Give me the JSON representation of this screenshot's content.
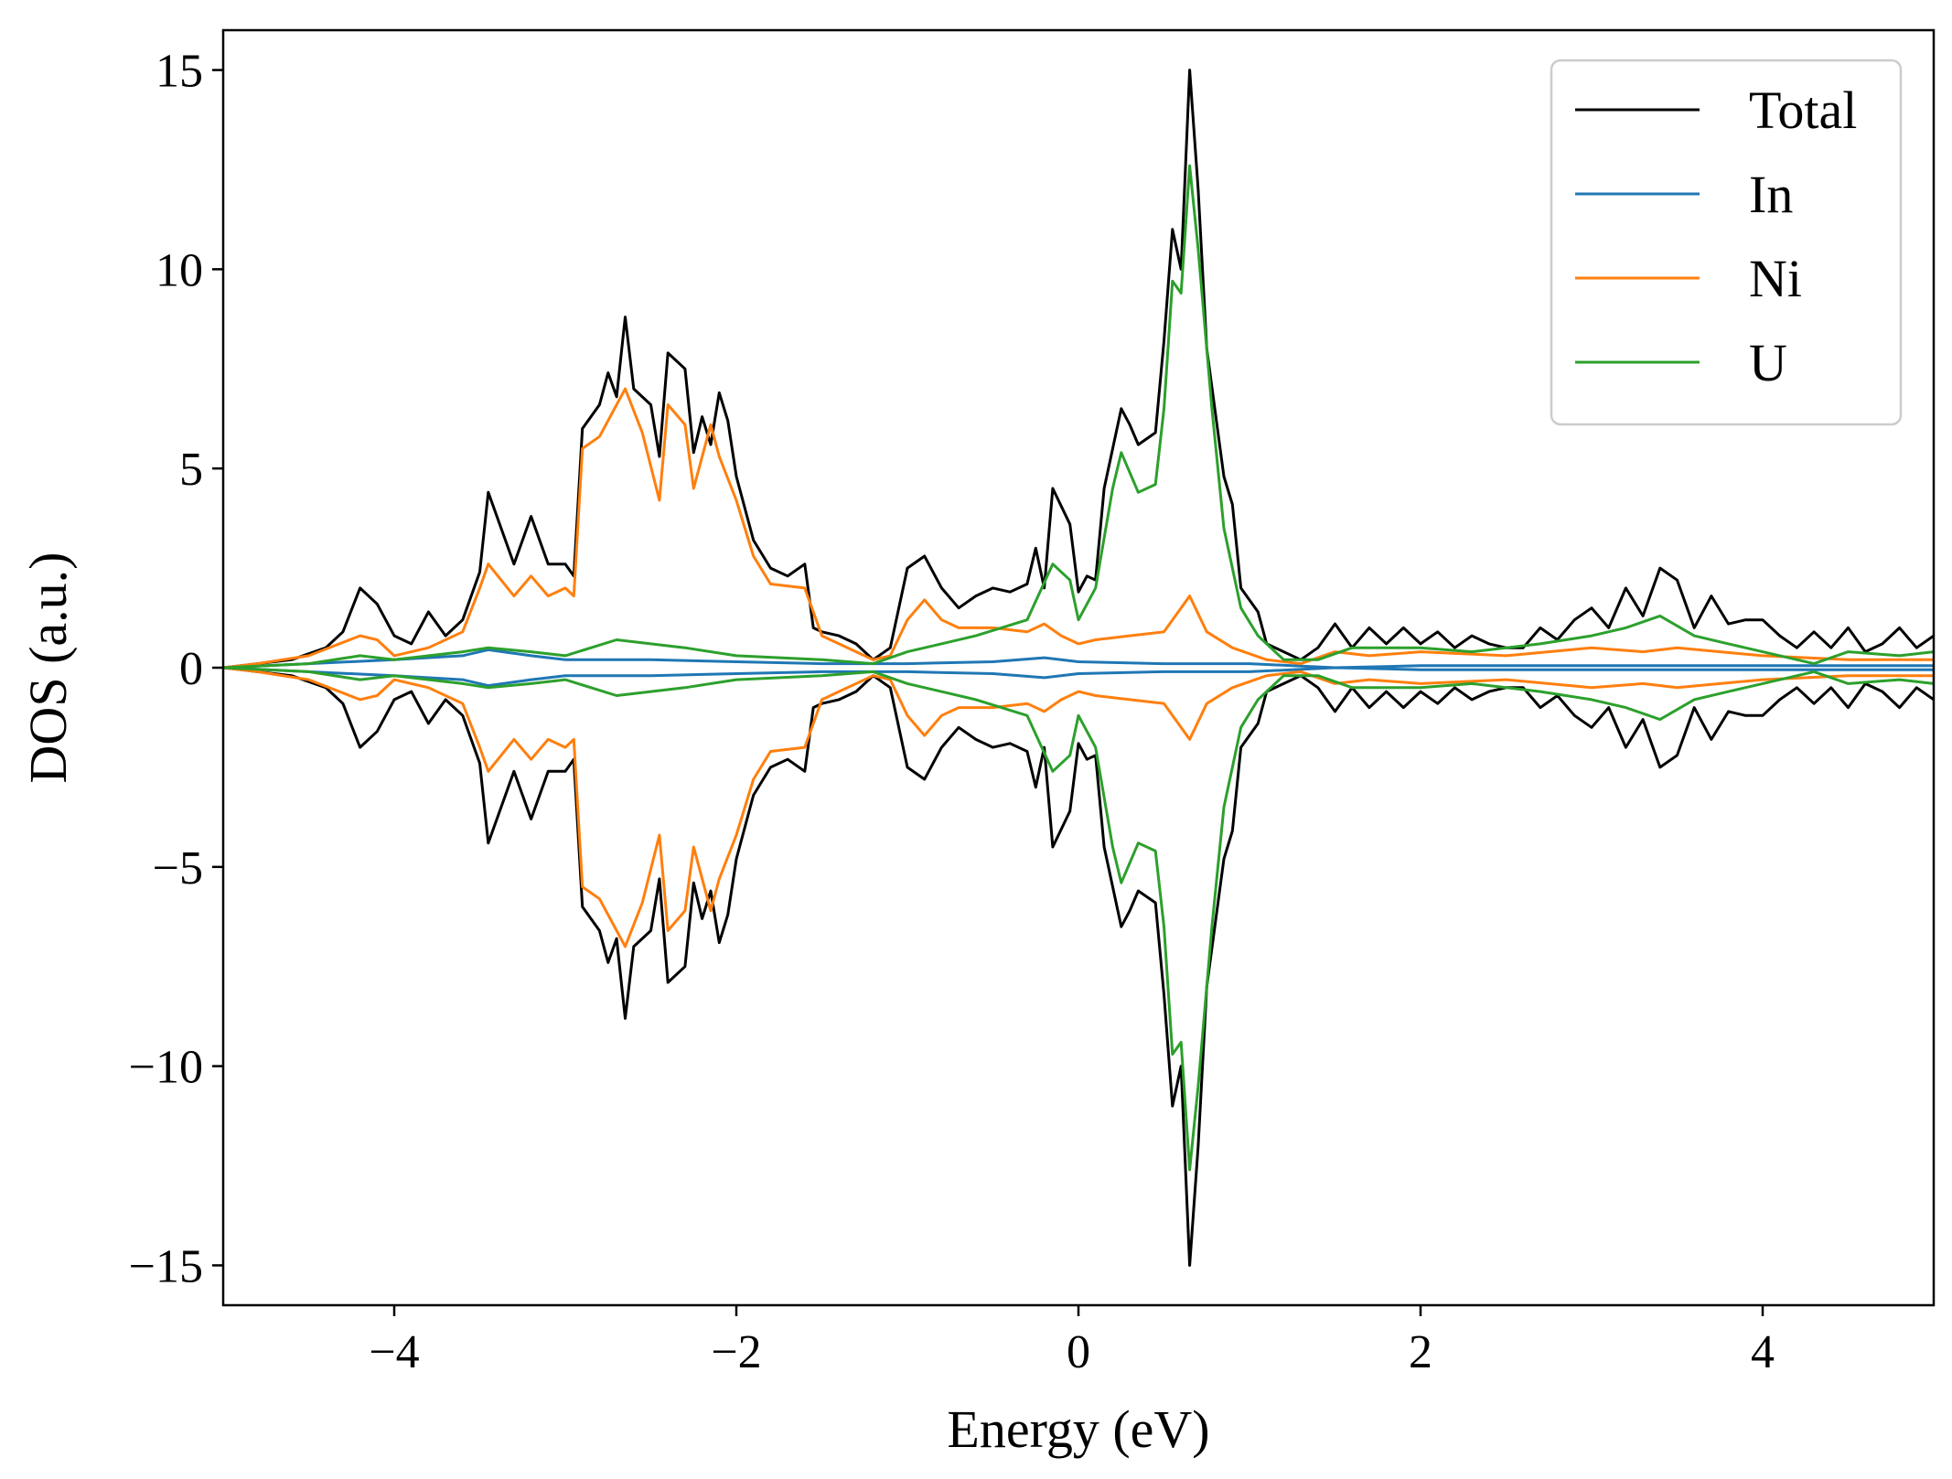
{
  "chart_data": {
    "type": "line",
    "title": "",
    "xlabel": "Energy (eV)",
    "ylabel": "DOS (a.u.)",
    "xlim": [
      -5,
      5
    ],
    "ylim": [
      -16,
      16
    ],
    "xticks": [
      -4,
      -2,
      0,
      2,
      4
    ],
    "yticks": [
      -15,
      -10,
      -5,
      0,
      5,
      10,
      15
    ],
    "xtick_labels": [
      "−4",
      "−2",
      "0",
      "2",
      "4"
    ],
    "ytick_labels": [
      "−15",
      "−10",
      "−5",
      "0",
      "5",
      "10",
      "15"
    ],
    "grid": false,
    "legend_position": "top-right",
    "spin_mirrored": true,
    "series": [
      {
        "name": "Total",
        "color": "#000000",
        "points": [
          [
            -5.0,
            0.0
          ],
          [
            -4.8,
            0.1
          ],
          [
            -4.6,
            0.2
          ],
          [
            -4.4,
            0.5
          ],
          [
            -4.3,
            0.9
          ],
          [
            -4.2,
            2.0
          ],
          [
            -4.1,
            1.6
          ],
          [
            -4.0,
            0.8
          ],
          [
            -3.9,
            0.6
          ],
          [
            -3.8,
            1.4
          ],
          [
            -3.7,
            0.8
          ],
          [
            -3.6,
            1.2
          ],
          [
            -3.5,
            2.4
          ],
          [
            -3.45,
            4.4
          ],
          [
            -3.4,
            3.8
          ],
          [
            -3.3,
            2.6
          ],
          [
            -3.2,
            3.8
          ],
          [
            -3.1,
            2.6
          ],
          [
            -3.0,
            2.6
          ],
          [
            -2.95,
            2.3
          ],
          [
            -2.9,
            6.0
          ],
          [
            -2.8,
            6.6
          ],
          [
            -2.75,
            7.4
          ],
          [
            -2.7,
            6.8
          ],
          [
            -2.65,
            8.8
          ],
          [
            -2.6,
            7.0
          ],
          [
            -2.5,
            6.6
          ],
          [
            -2.45,
            5.3
          ],
          [
            -2.4,
            7.9
          ],
          [
            -2.3,
            7.5
          ],
          [
            -2.25,
            5.4
          ],
          [
            -2.2,
            6.3
          ],
          [
            -2.15,
            5.6
          ],
          [
            -2.1,
            6.9
          ],
          [
            -2.05,
            6.2
          ],
          [
            -2.0,
            4.8
          ],
          [
            -1.9,
            3.2
          ],
          [
            -1.8,
            2.5
          ],
          [
            -1.7,
            2.3
          ],
          [
            -1.6,
            2.6
          ],
          [
            -1.55,
            1.0
          ],
          [
            -1.5,
            0.9
          ],
          [
            -1.4,
            0.8
          ],
          [
            -1.3,
            0.6
          ],
          [
            -1.2,
            0.2
          ],
          [
            -1.1,
            0.5
          ],
          [
            -1.0,
            2.5
          ],
          [
            -0.9,
            2.8
          ],
          [
            -0.8,
            2.0
          ],
          [
            -0.7,
            1.5
          ],
          [
            -0.6,
            1.8
          ],
          [
            -0.5,
            2.0
          ],
          [
            -0.4,
            1.9
          ],
          [
            -0.3,
            2.1
          ],
          [
            -0.25,
            3.0
          ],
          [
            -0.2,
            2.0
          ],
          [
            -0.15,
            4.5
          ],
          [
            -0.05,
            3.6
          ],
          [
            0.0,
            1.9
          ],
          [
            0.05,
            2.3
          ],
          [
            0.1,
            2.2
          ],
          [
            0.15,
            4.5
          ],
          [
            0.25,
            6.5
          ],
          [
            0.3,
            6.1
          ],
          [
            0.35,
            5.6
          ],
          [
            0.45,
            5.9
          ],
          [
            0.5,
            8.2
          ],
          [
            0.55,
            11.0
          ],
          [
            0.6,
            10.0
          ],
          [
            0.65,
            15.0
          ],
          [
            0.7,
            12.0
          ],
          [
            0.75,
            8.0
          ],
          [
            0.85,
            4.8
          ],
          [
            0.9,
            4.1
          ],
          [
            0.95,
            2.0
          ],
          [
            1.05,
            1.4
          ],
          [
            1.1,
            0.6
          ],
          [
            1.2,
            0.4
          ],
          [
            1.3,
            0.2
          ],
          [
            1.4,
            0.5
          ],
          [
            1.5,
            1.1
          ],
          [
            1.6,
            0.5
          ],
          [
            1.7,
            1.0
          ],
          [
            1.8,
            0.6
          ],
          [
            1.9,
            1.0
          ],
          [
            2.0,
            0.6
          ],
          [
            2.1,
            0.9
          ],
          [
            2.2,
            0.5
          ],
          [
            2.3,
            0.8
          ],
          [
            2.4,
            0.6
          ],
          [
            2.5,
            0.5
          ],
          [
            2.6,
            0.5
          ],
          [
            2.7,
            1.0
          ],
          [
            2.8,
            0.7
          ],
          [
            2.9,
            1.2
          ],
          [
            3.0,
            1.5
          ],
          [
            3.1,
            1.0
          ],
          [
            3.2,
            2.0
          ],
          [
            3.3,
            1.3
          ],
          [
            3.4,
            2.5
          ],
          [
            3.5,
            2.2
          ],
          [
            3.6,
            1.0
          ],
          [
            3.7,
            1.8
          ],
          [
            3.8,
            1.1
          ],
          [
            3.9,
            1.2
          ],
          [
            4.0,
            1.2
          ],
          [
            4.1,
            0.8
          ],
          [
            4.2,
            0.5
          ],
          [
            4.3,
            0.9
          ],
          [
            4.4,
            0.5
          ],
          [
            4.5,
            1.0
          ],
          [
            4.6,
            0.4
          ],
          [
            4.7,
            0.6
          ],
          [
            4.8,
            1.0
          ],
          [
            4.9,
            0.5
          ],
          [
            5.0,
            0.8
          ]
        ]
      },
      {
        "name": "In",
        "color": "#1f77b4",
        "points": [
          [
            -5.0,
            0.0
          ],
          [
            -4.5,
            0.1
          ],
          [
            -4.0,
            0.2
          ],
          [
            -3.6,
            0.3
          ],
          [
            -3.45,
            0.45
          ],
          [
            -3.2,
            0.3
          ],
          [
            -3.0,
            0.2
          ],
          [
            -2.5,
            0.2
          ],
          [
            -2.0,
            0.15
          ],
          [
            -1.5,
            0.1
          ],
          [
            -1.0,
            0.1
          ],
          [
            -0.5,
            0.15
          ],
          [
            -0.2,
            0.25
          ],
          [
            0.0,
            0.15
          ],
          [
            0.5,
            0.1
          ],
          [
            1.0,
            0.1
          ],
          [
            1.5,
            0.0
          ],
          [
            2.0,
            0.05
          ],
          [
            3.0,
            0.05
          ],
          [
            4.0,
            0.05
          ],
          [
            5.0,
            0.05
          ]
        ]
      },
      {
        "name": "Ni",
        "color": "#ff7f0e",
        "points": [
          [
            -5.0,
            0.0
          ],
          [
            -4.8,
            0.1
          ],
          [
            -4.5,
            0.3
          ],
          [
            -4.2,
            0.8
          ],
          [
            -4.1,
            0.7
          ],
          [
            -4.0,
            0.3
          ],
          [
            -3.8,
            0.5
          ],
          [
            -3.6,
            0.9
          ],
          [
            -3.5,
            2.0
          ],
          [
            -3.45,
            2.6
          ],
          [
            -3.3,
            1.8
          ],
          [
            -3.2,
            2.3
          ],
          [
            -3.1,
            1.8
          ],
          [
            -3.0,
            2.0
          ],
          [
            -2.95,
            1.8
          ],
          [
            -2.9,
            5.5
          ],
          [
            -2.8,
            5.8
          ],
          [
            -2.65,
            7.0
          ],
          [
            -2.55,
            5.9
          ],
          [
            -2.45,
            4.2
          ],
          [
            -2.4,
            6.6
          ],
          [
            -2.3,
            6.1
          ],
          [
            -2.25,
            4.5
          ],
          [
            -2.15,
            6.1
          ],
          [
            -2.1,
            5.3
          ],
          [
            -2.0,
            4.2
          ],
          [
            -1.9,
            2.8
          ],
          [
            -1.8,
            2.1
          ],
          [
            -1.6,
            2.0
          ],
          [
            -1.5,
            0.8
          ],
          [
            -1.4,
            0.6
          ],
          [
            -1.2,
            0.2
          ],
          [
            -1.1,
            0.3
          ],
          [
            -1.0,
            1.2
          ],
          [
            -0.9,
            1.7
          ],
          [
            -0.8,
            1.2
          ],
          [
            -0.7,
            1.0
          ],
          [
            -0.5,
            1.0
          ],
          [
            -0.3,
            0.9
          ],
          [
            -0.2,
            1.1
          ],
          [
            -0.1,
            0.8
          ],
          [
            0.0,
            0.6
          ],
          [
            0.1,
            0.7
          ],
          [
            0.3,
            0.8
          ],
          [
            0.5,
            0.9
          ],
          [
            0.65,
            1.8
          ],
          [
            0.75,
            0.9
          ],
          [
            0.9,
            0.5
          ],
          [
            1.1,
            0.2
          ],
          [
            1.3,
            0.1
          ],
          [
            1.5,
            0.4
          ],
          [
            1.7,
            0.3
          ],
          [
            2.0,
            0.4
          ],
          [
            2.5,
            0.3
          ],
          [
            3.0,
            0.5
          ],
          [
            3.3,
            0.4
          ],
          [
            3.5,
            0.5
          ],
          [
            4.0,
            0.3
          ],
          [
            4.5,
            0.2
          ],
          [
            5.0,
            0.2
          ]
        ]
      },
      {
        "name": "U",
        "color": "#2ca02c",
        "points": [
          [
            -5.0,
            0.0
          ],
          [
            -4.5,
            0.1
          ],
          [
            -4.2,
            0.3
          ],
          [
            -4.0,
            0.2
          ],
          [
            -3.6,
            0.4
          ],
          [
            -3.45,
            0.5
          ],
          [
            -3.2,
            0.4
          ],
          [
            -3.0,
            0.3
          ],
          [
            -2.7,
            0.7
          ],
          [
            -2.5,
            0.6
          ],
          [
            -2.3,
            0.5
          ],
          [
            -2.0,
            0.3
          ],
          [
            -1.5,
            0.2
          ],
          [
            -1.2,
            0.1
          ],
          [
            -1.0,
            0.4
          ],
          [
            -0.6,
            0.8
          ],
          [
            -0.3,
            1.2
          ],
          [
            -0.15,
            2.6
          ],
          [
            -0.05,
            2.2
          ],
          [
            0.0,
            1.2
          ],
          [
            0.1,
            2.0
          ],
          [
            0.2,
            4.5
          ],
          [
            0.25,
            5.4
          ],
          [
            0.35,
            4.4
          ],
          [
            0.45,
            4.6
          ],
          [
            0.5,
            6.5
          ],
          [
            0.55,
            9.7
          ],
          [
            0.6,
            9.4
          ],
          [
            0.65,
            12.6
          ],
          [
            0.7,
            10.5
          ],
          [
            0.78,
            6.5
          ],
          [
            0.85,
            3.5
          ],
          [
            0.95,
            1.5
          ],
          [
            1.05,
            0.8
          ],
          [
            1.2,
            0.2
          ],
          [
            1.4,
            0.2
          ],
          [
            1.6,
            0.5
          ],
          [
            2.0,
            0.5
          ],
          [
            2.3,
            0.4
          ],
          [
            2.7,
            0.6
          ],
          [
            3.0,
            0.8
          ],
          [
            3.2,
            1.0
          ],
          [
            3.4,
            1.3
          ],
          [
            3.6,
            0.8
          ],
          [
            3.8,
            0.6
          ],
          [
            4.0,
            0.4
          ],
          [
            4.3,
            0.1
          ],
          [
            4.5,
            0.4
          ],
          [
            4.8,
            0.3
          ],
          [
            5.0,
            0.4
          ]
        ]
      }
    ]
  }
}
